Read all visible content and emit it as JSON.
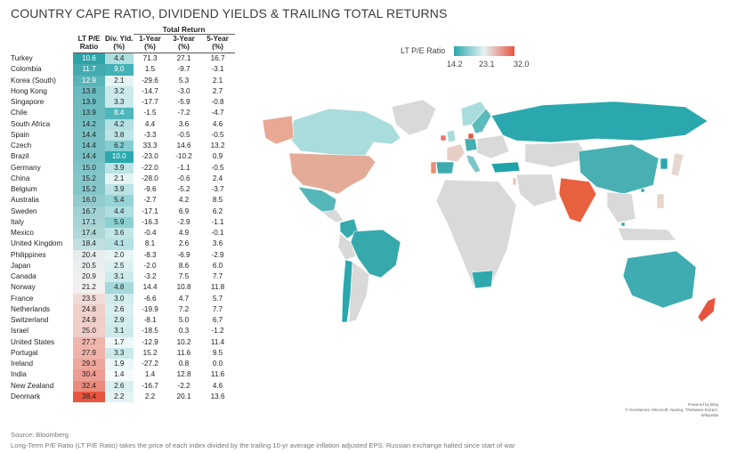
{
  "title": "COUNTRY CAPE RATIO, DIVIDEND YIELDS & TRAILING TOTAL RETURNS",
  "table": {
    "group_header": "Total Return",
    "headers": {
      "pe_line1": "LT P/E",
      "pe_line2": "Ratio",
      "dy_line1": "Div. Yld.",
      "dy_line2": "(%)",
      "r1_line1": "1-Year",
      "r1_line2": "(%)",
      "r3_line1": "3-Year",
      "r3_line2": "(%)",
      "r5_line1": "5-Year",
      "r5_line2": "(%)"
    },
    "rows": [
      {
        "country": "Turkey",
        "pe": "10.6",
        "dy": "4.4",
        "r1": "71.3",
        "r3": "27.1",
        "r5": "16.7"
      },
      {
        "country": "Colombia",
        "pe": "11.7",
        "dy": "9.0",
        "r1": "1.5",
        "r3": "-9.7",
        "r5": "-3.1"
      },
      {
        "country": "Korea (South)",
        "pe": "12.9",
        "dy": "2.1",
        "r1": "-29.6",
        "r3": "5.3",
        "r5": "2.1"
      },
      {
        "country": "Hong Kong",
        "pe": "13.8",
        "dy": "3.2",
        "r1": "-14.7",
        "r3": "-3.0",
        "r5": "2.7"
      },
      {
        "country": "Singapore",
        "pe": "13.9",
        "dy": "3.3",
        "r1": "-17.7",
        "r3": "-5.9",
        "r5": "-0.8"
      },
      {
        "country": "Chile",
        "pe": "13.9",
        "dy": "8.4",
        "r1": "-1.5",
        "r3": "-7.2",
        "r5": "-4.7"
      },
      {
        "country": "South Africa",
        "pe": "14.2",
        "dy": "4.2",
        "r1": "4.4",
        "r3": "3.6",
        "r5": "4.6"
      },
      {
        "country": "Spain",
        "pe": "14.4",
        "dy": "3.8",
        "r1": "-3.3",
        "r3": "-0.5",
        "r5": "-0.5"
      },
      {
        "country": "Czech",
        "pe": "14.4",
        "dy": "6.2",
        "r1": "33.3",
        "r3": "14.6",
        "r5": "13.2"
      },
      {
        "country": "Brazil",
        "pe": "14.4",
        "dy": "10.0",
        "r1": "-23.0",
        "r3": "-10.2",
        "r5": "0.9"
      },
      {
        "country": "Germany",
        "pe": "15.0",
        "dy": "3.9",
        "r1": "-22.0",
        "r3": "-1.1",
        "r5": "-0.5"
      },
      {
        "country": "China",
        "pe": "15.2",
        "dy": "2.1",
        "r1": "-28.0",
        "r3": "-0.6",
        "r5": "2.4"
      },
      {
        "country": "Belgium",
        "pe": "15.2",
        "dy": "3.9",
        "r1": "-9.6",
        "r3": "-5.2",
        "r5": "-3.7"
      },
      {
        "country": "Australia",
        "pe": "16.0",
        "dy": "5.4",
        "r1": "-2.7",
        "r3": "4.2",
        "r5": "8.5"
      },
      {
        "country": "Sweden",
        "pe": "16.7",
        "dy": "4.4",
        "r1": "-17.1",
        "r3": "6.9",
        "r5": "6.2"
      },
      {
        "country": "Italy",
        "pe": "17.1",
        "dy": "5.9",
        "r1": "-16.3",
        "r3": "-2.9",
        "r5": "-1.1"
      },
      {
        "country": "Mexico",
        "pe": "17.4",
        "dy": "3.6",
        "r1": "-0.4",
        "r3": "4.9",
        "r5": "-0.1"
      },
      {
        "country": "United Kingdom",
        "pe": "18.4",
        "dy": "4.1",
        "r1": "8.1",
        "r3": "2.6",
        "r5": "3.6"
      },
      {
        "country": "Philippines",
        "pe": "20.4",
        "dy": "2.0",
        "r1": "-8.3",
        "r3": "-6.9",
        "r5": "-2.9"
      },
      {
        "country": "Japan",
        "pe": "20.5",
        "dy": "2.5",
        "r1": "-2.0",
        "r3": "8.6",
        "r5": "6.0"
      },
      {
        "country": "Canada",
        "pe": "20.9",
        "dy": "3.1",
        "r1": "-3.2",
        "r3": "7.5",
        "r5": "7.7"
      },
      {
        "country": "Norway",
        "pe": "21.2",
        "dy": "4.8",
        "r1": "14.4",
        "r3": "10.8",
        "r5": "11.8"
      },
      {
        "country": "France",
        "pe": "23.5",
        "dy": "3.0",
        "r1": "-6.6",
        "r3": "4.7",
        "r5": "5.7"
      },
      {
        "country": "Netherlands",
        "pe": "24.8",
        "dy": "2.6",
        "r1": "-19.9",
        "r3": "7.2",
        "r5": "7.7"
      },
      {
        "country": "Switzerland",
        "pe": "24.9",
        "dy": "2.9",
        "r1": "-8.1",
        "r3": "5.0",
        "r5": "6.7"
      },
      {
        "country": "Israel",
        "pe": "25.0",
        "dy": "3.1",
        "r1": "-18.5",
        "r3": "0.3",
        "r5": "-1.2"
      },
      {
        "country": "United States",
        "pe": "27.7",
        "dy": "1.7",
        "r1": "-12.9",
        "r3": "10.2",
        "r5": "11.4"
      },
      {
        "country": "Portugal",
        "pe": "27.9",
        "dy": "3.3",
        "r1": "15.2",
        "r3": "11.6",
        "r5": "9.5"
      },
      {
        "country": "Ireland",
        "pe": "29.3",
        "dy": "1.9",
        "r1": "-27.2",
        "r3": "0.8",
        "r5": "0.0"
      },
      {
        "country": "India",
        "pe": "30.4",
        "dy": "1.4",
        "r1": "1.4",
        "r3": "12.8",
        "r5": "11.6"
      },
      {
        "country": "New Zealand",
        "pe": "32.4",
        "dy": "2.6",
        "r1": "-16.7",
        "r3": "-2.2",
        "r5": "4.6"
      },
      {
        "country": "Denmark",
        "pe": "38.4",
        "dy": "2.2",
        "r1": "2.2",
        "r3": "20.1",
        "r5": "13.6"
      }
    ]
  },
  "legend": {
    "title": "LT P/E Ratio",
    "min_label": "14.2",
    "mid_label": "23.1",
    "max_label": "32.0",
    "color_low": "#2aa8ae",
    "color_mid": "#e6f2f2",
    "color_high": "#e8553f"
  },
  "map_attribution_line1": "Powered by Bing",
  "map_attribution_line2": "© GeoNames, Microsoft, Navteq, Thinkware Extract, Wikipedia",
  "source": "Source: Bloomberg",
  "footnote": "Long-Term P/E Ratio (LT P/E Ratio) takes the price of each index divided by the trailing 10-yr average inflation adjusted EPS. Russian exchange halted since start of war",
  "colors": {
    "pe_low": "#2ea3a8",
    "pe_mid": "#f2f2f2",
    "pe_high": "#e8553f",
    "dy_low": "#f6fbfb",
    "dy_high": "#2aa8ae",
    "map_no_data": "#d9d9d9"
  }
}
